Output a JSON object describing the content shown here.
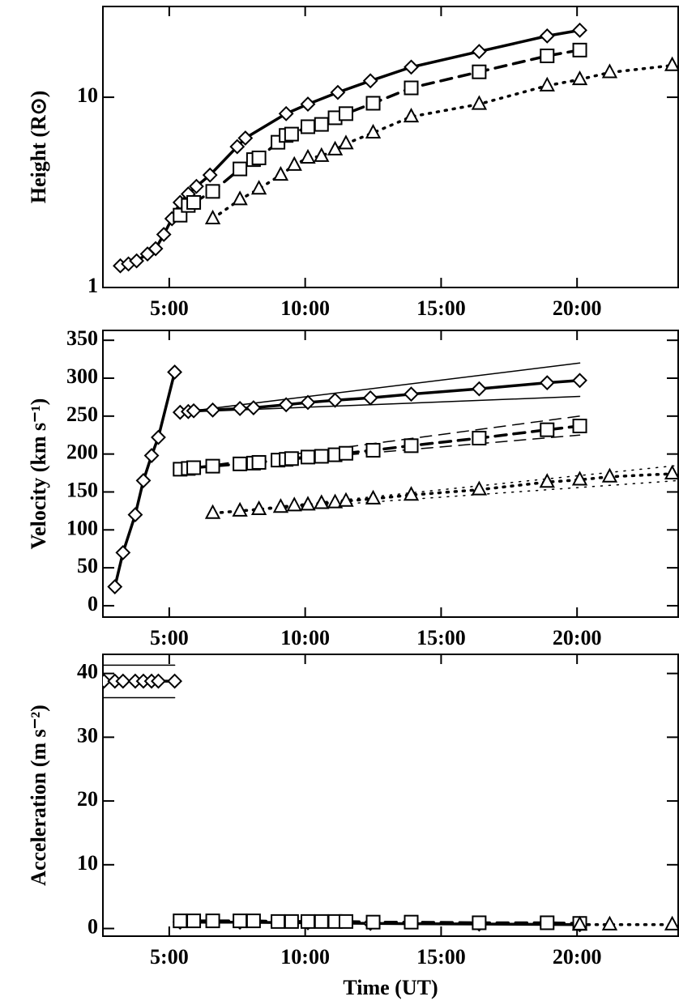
{
  "chart_data": [
    {
      "type": "line",
      "ylabel": "Height (R⊙)",
      "ylog": true,
      "xlim": [
        2.56,
        23.72
      ],
      "xticks": [
        {
          "value": 5,
          "label": "5:00"
        },
        {
          "value": 10,
          "label": "10:00"
        },
        {
          "value": 15,
          "label": "15:00"
        },
        {
          "value": 20,
          "label": "20:00"
        }
      ],
      "ylim": [
        1,
        30
      ],
      "yticks": [
        1,
        10
      ],
      "series": [
        {
          "color": "#000000",
          "marker": "diamond",
          "dash": "solid",
          "width": 3.5,
          "x": [
            3.2,
            3.5,
            3.8,
            4.2,
            4.5,
            4.8,
            5.1,
            5.4,
            5.7,
            6.0,
            6.5,
            7.5,
            7.8,
            9.3,
            10.1,
            11.2,
            12.4,
            13.9,
            16.4,
            18.9,
            20.1
          ],
          "values": [
            1.3,
            1.33,
            1.38,
            1.5,
            1.6,
            1.9,
            2.3,
            2.8,
            3.1,
            3.4,
            3.9,
            5.5,
            6.1,
            8.2,
            9.2,
            10.6,
            12.2,
            14.4,
            17.4,
            21,
            22.5
          ]
        },
        {
          "color": "#000000",
          "marker": "square",
          "dash": "dashed",
          "width": 3.5,
          "x": [
            5.4,
            5.7,
            5.9,
            6.6,
            7.6,
            8.1,
            8.3,
            9.0,
            9.3,
            9.5,
            10.1,
            10.6,
            11.1,
            11.5,
            12.5,
            13.9,
            16.4,
            18.9,
            20.1
          ],
          "values": [
            2.4,
            2.7,
            2.8,
            3.2,
            4.2,
            4.7,
            4.8,
            5.8,
            6.3,
            6.4,
            7.0,
            7.2,
            7.8,
            8.2,
            9.3,
            11.2,
            13.6,
            16.5,
            17.7
          ]
        },
        {
          "color": "#000000",
          "marker": "triangle",
          "dash": "dotted",
          "width": 3.5,
          "x": [
            6.6,
            7.6,
            8.3,
            9.1,
            9.6,
            10.1,
            10.6,
            11.1,
            11.5,
            12.5,
            13.9,
            16.4,
            18.9,
            20.1,
            21.2,
            23.5
          ],
          "values": [
            2.3,
            2.9,
            3.3,
            3.9,
            4.4,
            4.8,
            4.9,
            5.3,
            5.7,
            6.5,
            7.9,
            9.2,
            11.5,
            12.4,
            13.5,
            14.7
          ]
        }
      ]
    },
    {
      "type": "line",
      "ylabel": "Velocity (km s⁻¹)",
      "xlim": [
        2.56,
        23.72
      ],
      "xticks": [
        {
          "value": 5,
          "label": "5:00"
        },
        {
          "value": 10,
          "label": "10:00"
        },
        {
          "value": 15,
          "label": "15:00"
        },
        {
          "value": 20,
          "label": "20:00"
        }
      ],
      "ylim": [
        -15,
        363
      ],
      "yticks": [
        0,
        50,
        100,
        150,
        200,
        250,
        300,
        350
      ],
      "series": [
        {
          "color": "#000000",
          "marker": "diamond",
          "dash": "solid",
          "width": 3.5,
          "x": [
            3.0,
            3.3,
            3.75,
            4.05,
            4.35,
            4.6,
            5.2
          ],
          "values": [
            25,
            70,
            120,
            165,
            198,
            222,
            308
          ]
        },
        {
          "color": "#000000",
          "dash": "solid",
          "width": 1.5,
          "x": [
            5.4,
            20.1
          ],
          "values": [
            255,
            320
          ]
        },
        {
          "color": "#000000",
          "dash": "solid",
          "width": 1.5,
          "x": [
            5.4,
            20.1
          ],
          "values": [
            255,
            276
          ]
        },
        {
          "color": "#000000",
          "marker": "diamond",
          "dash": "solid",
          "width": 3.5,
          "x": [
            5.4,
            5.7,
            5.9,
            6.6,
            7.6,
            8.1,
            9.3,
            10.1,
            11.1,
            12.4,
            13.9,
            16.4,
            18.9,
            20.1
          ],
          "values": [
            255,
            256,
            257,
            258,
            260,
            261,
            265,
            268,
            271,
            274,
            279,
            286,
            294,
            297
          ]
        },
        {
          "color": "#000000",
          "dash": "dashed",
          "width": 1.5,
          "x": [
            5.4,
            20.1
          ],
          "values": [
            180,
            250
          ]
        },
        {
          "color": "#000000",
          "dash": "dashed",
          "width": 1.5,
          "x": [
            5.4,
            20.1
          ],
          "values": [
            180,
            225
          ]
        },
        {
          "color": "#000000",
          "marker": "square",
          "dash": "dashed",
          "width": 3.5,
          "x": [
            5.4,
            5.7,
            5.9,
            6.6,
            7.6,
            8.1,
            8.3,
            9.0,
            9.3,
            9.5,
            10.1,
            10.6,
            11.1,
            11.5,
            12.5,
            13.9,
            16.4,
            18.9,
            20.1
          ],
          "values": [
            180,
            181,
            182,
            184,
            187,
            188,
            189,
            192,
            193,
            194,
            196,
            197,
            199,
            201,
            205,
            211,
            221,
            232,
            237
          ]
        },
        {
          "color": "#000000",
          "dash": "dotted",
          "width": 1.5,
          "x": [
            6.6,
            23.72
          ],
          "values": [
            122,
            185
          ]
        },
        {
          "color": "#000000",
          "dash": "dotted",
          "width": 1.5,
          "x": [
            6.6,
            23.72
          ],
          "values": [
            122,
            165
          ]
        },
        {
          "color": "#000000",
          "marker": "triangle",
          "dash": "dotted",
          "width": 3.5,
          "x": [
            6.6,
            7.6,
            8.3,
            9.1,
            9.6,
            10.1,
            10.6,
            11.1,
            11.5,
            12.5,
            13.9,
            16.4,
            18.9,
            20.1,
            21.2,
            23.5
          ],
          "values": [
            122,
            125,
            127,
            130,
            132,
            133,
            135,
            136,
            138,
            141,
            146,
            153,
            163,
            166,
            170,
            174
          ]
        }
      ]
    },
    {
      "type": "line",
      "ylabel": "Acceleration (m s⁻²)",
      "xlabel": "Time (UT)",
      "xlim": [
        2.56,
        23.72
      ],
      "xticks": [
        {
          "value": 5,
          "label": "5:00"
        },
        {
          "value": 10,
          "label": "10:00"
        },
        {
          "value": 15,
          "label": "15:00"
        },
        {
          "value": 20,
          "label": "20:00"
        }
      ],
      "ylim": [
        -1.2,
        43
      ],
      "yticks": [
        0,
        10,
        20,
        30,
        40
      ],
      "series": [
        {
          "color": "#000000",
          "dash": "solid",
          "width": 1.5,
          "x": [
            2.56,
            5.2
          ],
          "values": [
            41.3,
            41.3
          ]
        },
        {
          "color": "#000000",
          "dash": "solid",
          "width": 1.5,
          "x": [
            2.56,
            5.2
          ],
          "values": [
            36.2,
            36.2
          ]
        },
        {
          "color": "#000000",
          "marker": "diamond",
          "dash": "solid",
          "width": 3.5,
          "x": [
            2.6,
            3.0,
            3.3,
            3.75,
            4.05,
            4.35,
            4.6,
            5.2
          ],
          "values": [
            38.8,
            38.8,
            38.8,
            38.8,
            38.8,
            38.8,
            38.8,
            38.8
          ]
        },
        {
          "color": "#000000",
          "marker": "diamond",
          "dash": "solid",
          "width": 3.5,
          "x": [
            5.4,
            7.6,
            10.1,
            12.4,
            16.4,
            20.1
          ],
          "values": [
            1.0,
            1.0,
            0.9,
            0.8,
            0.7,
            0.6
          ]
        },
        {
          "color": "#000000",
          "marker": "square",
          "dash": "dashed",
          "width": 3.5,
          "x": [
            5.4,
            5.9,
            6.6,
            7.6,
            8.1,
            9.0,
            9.5,
            10.1,
            10.6,
            11.1,
            11.5,
            12.5,
            13.9,
            16.4,
            18.9,
            20.1
          ],
          "values": [
            1.2,
            1.2,
            1.2,
            1.2,
            1.2,
            1.1,
            1.1,
            1.1,
            1.1,
            1.1,
            1.1,
            1.0,
            1.0,
            0.9,
            0.9,
            0.8
          ]
        },
        {
          "color": "#000000",
          "marker": "triangle",
          "dash": "dotted",
          "width": 3.5,
          "x": [
            20.1,
            21.2,
            23.5
          ],
          "values": [
            0.6,
            0.6,
            0.6
          ]
        }
      ]
    }
  ]
}
